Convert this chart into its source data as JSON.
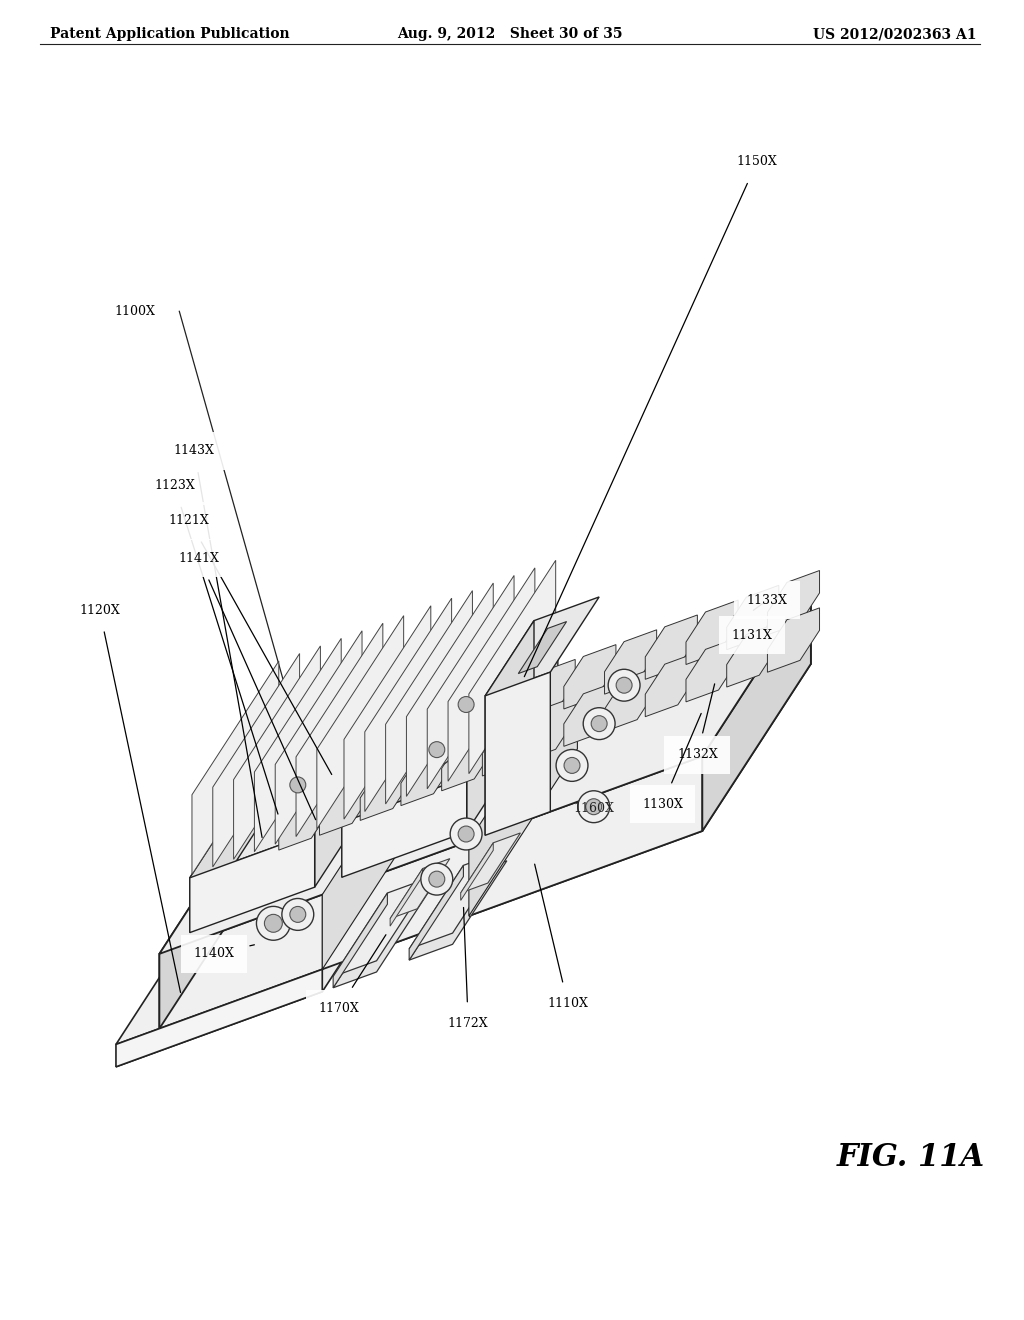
{
  "header_left": "Patent Application Publication",
  "header_center": "Aug. 9, 2012   Sheet 30 of 35",
  "header_right": "US 2012/0202363 A1",
  "fig_label": "FIG. 11A",
  "background_color": "#ffffff",
  "text_color": "#000000",
  "line_color": "#222222",
  "fill_light": "#f5f5f5",
  "fill_mid": "#e0e0e0",
  "fill_dark": "#cccccc"
}
